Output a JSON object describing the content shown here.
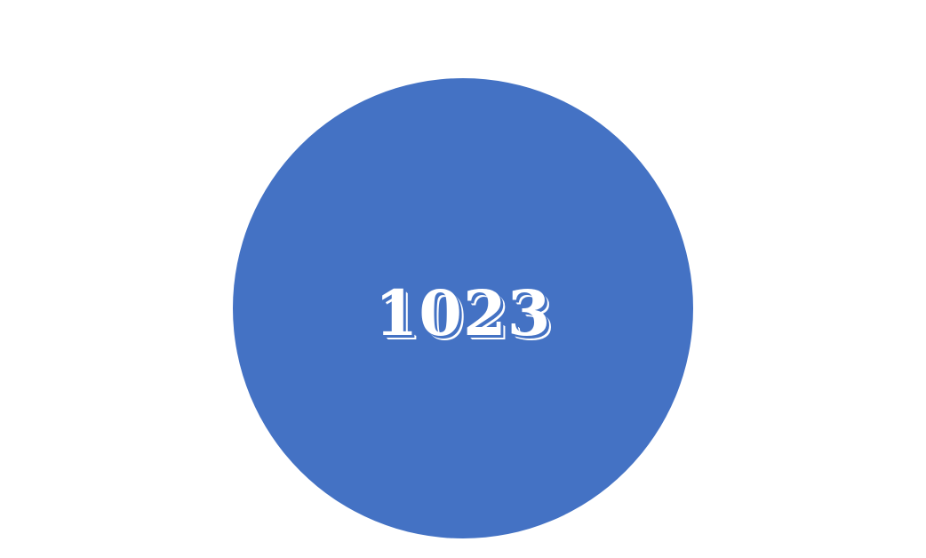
{
  "disc": {
    "label": "1023",
    "fill_color": "#4472C4",
    "text_color": "#FFFFFF"
  },
  "background_color": "#FFFFFF"
}
